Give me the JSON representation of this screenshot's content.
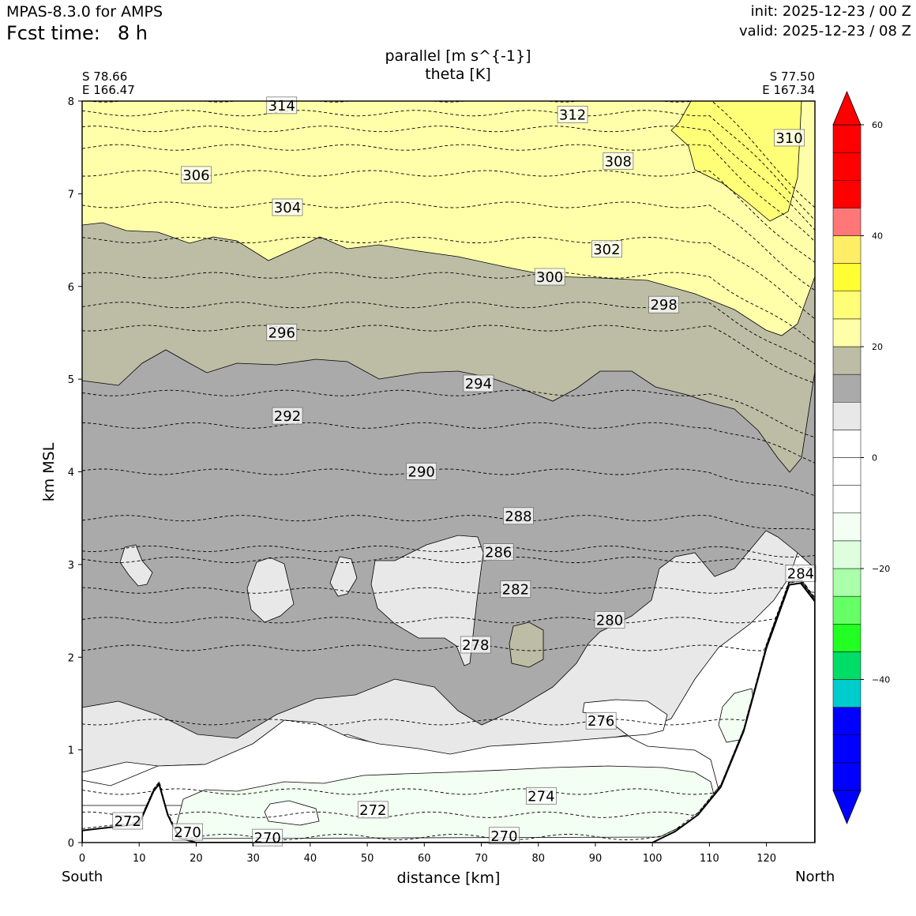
{
  "header": {
    "model": "MPAS-8.3.0 for AMPS",
    "fcst_label": "Fcst time:",
    "fcst_value": "8 h",
    "init": "init: 2025-12-23 / 00 Z",
    "valid": "valid: 2025-12-23 / 08 Z"
  },
  "chart_data": {
    "type": "contour",
    "title": "parallel [m s^{-1}]",
    "subtitle": "theta [K]",
    "xlabel": "distance [km]",
    "ylabel": "km MSL",
    "xlim": [
      0,
      128.5
    ],
    "ylim": [
      0,
      8
    ],
    "x_ticks": [
      0,
      10,
      20,
      30,
      40,
      50,
      60,
      70,
      80,
      90,
      100,
      110,
      120
    ],
    "y_ticks": [
      0,
      1,
      2,
      3,
      4,
      5,
      6,
      7,
      8
    ],
    "start_point": {
      "lat": "S 78.66",
      "lon": "E 166.47"
    },
    "end_point": {
      "lat": "S 77.50",
      "lon": "E 167.34"
    },
    "left_label": "South",
    "right_label": "North",
    "colorbar": {
      "bounds": [
        -60,
        -55,
        -50,
        -45,
        -40,
        -35,
        -30,
        -25,
        -20,
        -15,
        -10,
        -5,
        0,
        5,
        10,
        15,
        20,
        25,
        30,
        35,
        40,
        45,
        50,
        55,
        60
      ],
      "colors": [
        "#0000ff",
        "#0000ff",
        "#0000ff",
        "#00cccc",
        "#00dd66",
        "#22ff22",
        "#66ff66",
        "#aaffaa",
        "#ddffdd",
        "#f2fff2",
        "#ffffff",
        "#ffffff",
        "#ffffff",
        "#e8e8e8",
        "#aaaaaa",
        "#bdbda5",
        "#ffffaa",
        "#ffff77",
        "#ffff33",
        "#ffee66",
        "#ff7777",
        "#ff0000"
      ],
      "tick_labels": [
        60,
        40,
        20,
        0,
        -20,
        -40
      ],
      "extend": "both"
    },
    "theta_labels": [
      {
        "value": "314",
        "x": 35,
        "y": 7.95
      },
      {
        "value": "312",
        "x": 86,
        "y": 7.85
      },
      {
        "value": "310",
        "x": 124,
        "y": 7.6
      },
      {
        "value": "308",
        "x": 94,
        "y": 7.35
      },
      {
        "value": "306",
        "x": 20,
        "y": 7.2
      },
      {
        "value": "304",
        "x": 36,
        "y": 6.85
      },
      {
        "value": "302",
        "x": 92,
        "y": 6.4
      },
      {
        "value": "300",
        "x": 82,
        "y": 6.1
      },
      {
        "value": "298",
        "x": 102,
        "y": 5.8
      },
      {
        "value": "296",
        "x": 35,
        "y": 5.5
      },
      {
        "value": "294",
        "x": 69.5,
        "y": 4.95
      },
      {
        "value": "292",
        "x": 36,
        "y": 4.6
      },
      {
        "value": "290",
        "x": 59.5,
        "y": 4.0
      },
      {
        "value": "288",
        "x": 76.5,
        "y": 3.52
      },
      {
        "value": "286",
        "x": 73,
        "y": 3.13
      },
      {
        "value": "284",
        "x": 126,
        "y": 2.9
      },
      {
        "value": "282",
        "x": 76,
        "y": 2.73
      },
      {
        "value": "280",
        "x": 92.5,
        "y": 2.4
      },
      {
        "value": "278",
        "x": 69,
        "y": 2.13
      },
      {
        "value": "276",
        "x": 91,
        "y": 1.31
      },
      {
        "value": "274",
        "x": 80.5,
        "y": 0.5
      },
      {
        "value": "272",
        "x": 8,
        "y": 0.23
      },
      {
        "value": "272",
        "x": 51,
        "y": 0.35
      },
      {
        "value": "270",
        "x": 18.5,
        "y": 0.11
      },
      {
        "value": "270",
        "x": 32.5,
        "y": 0.05
      },
      {
        "value": "270",
        "x": 74,
        "y": 0.07
      }
    ],
    "theta_lines": [
      {
        "value": 270,
        "y": 0.06
      },
      {
        "value": 272,
        "y": 0.3
      },
      {
        "value": 274,
        "y": 0.55
      },
      {
        "value": 276,
        "y": 1.3
      },
      {
        "value": 278,
        "y": 2.1
      },
      {
        "value": 280,
        "y": 2.4
      },
      {
        "value": 282,
        "y": 2.72
      },
      {
        "value": 284,
        "y": 3.05
      },
      {
        "value": 286,
        "y": 3.17
      },
      {
        "value": 288,
        "y": 3.5
      },
      {
        "value": 290,
        "y": 4.0
      },
      {
        "value": 292,
        "y": 4.5
      },
      {
        "value": 294,
        "y": 4.85
      },
      {
        "value": 296,
        "y": 5.55
      },
      {
        "value": 298,
        "y": 5.8
      },
      {
        "value": 300,
        "y": 6.12
      },
      {
        "value": 302,
        "y": 6.5
      },
      {
        "value": 304,
        "y": 6.88
      },
      {
        "value": 306,
        "y": 7.22
      },
      {
        "value": 308,
        "y": 7.5
      },
      {
        "value": 310,
        "y": 7.7
      },
      {
        "value": 312,
        "y": 7.87
      },
      {
        "value": 314,
        "y": 8.02
      }
    ],
    "terrain": [
      [
        0,
        0.13
      ],
      [
        10,
        0.2
      ],
      [
        12.5,
        0.55
      ],
      [
        13.5,
        0.63
      ],
      [
        15,
        0.3
      ],
      [
        17,
        0.05
      ],
      [
        20,
        0.0
      ],
      [
        100,
        0.0
      ],
      [
        104,
        0.12
      ],
      [
        108,
        0.3
      ],
      [
        112,
        0.6
      ],
      [
        116,
        1.2
      ],
      [
        120,
        2.1
      ],
      [
        124,
        2.78
      ],
      [
        126,
        2.8
      ],
      [
        128.5,
        2.6
      ]
    ]
  }
}
